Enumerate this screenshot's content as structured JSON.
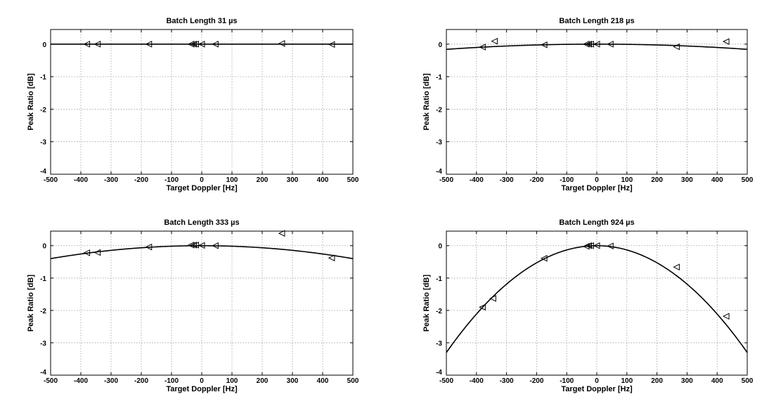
{
  "chart_data": [
    {
      "type": "line",
      "title": "Batch Length 31 µs",
      "xlabel": "Target Doppler [Hz]",
      "ylabel": "Peak Ratio [dB]",
      "xlim": [
        -500,
        500
      ],
      "ylim": [
        -4,
        0.45
      ],
      "xticks": [
        -500,
        -400,
        -300,
        -200,
        -100,
        0,
        100,
        200,
        300,
        400,
        500
      ],
      "yticks": [
        0,
        -1,
        -2,
        -3,
        -4
      ],
      "grid": true,
      "curve": {
        "style": "solid",
        "curvature_db_per_hz2": 5e-10
      },
      "markers": {
        "shape": "left-triangle",
        "x": [
          -380,
          -345,
          -175,
          -35,
          -27,
          -20,
          0,
          45,
          265,
          430
        ],
        "y": [
          0.0,
          0.0,
          0.0,
          0.0,
          0.0,
          0.0,
          0.0,
          0.0,
          0.02,
          -0.01
        ]
      }
    },
    {
      "type": "line",
      "title": "Batch Length 218 µs",
      "xlabel": "Target Doppler [Hz]",
      "ylabel": "Peak Ratio [dB]",
      "xlim": [
        -500,
        500
      ],
      "ylim": [
        -4,
        0.45
      ],
      "xticks": [
        -500,
        -400,
        -300,
        -200,
        -100,
        0,
        100,
        200,
        300,
        400,
        500
      ],
      "yticks": [
        0,
        -1,
        -2,
        -3,
        -4
      ],
      "grid": true,
      "curve": {
        "style": "solid",
        "curvature_db_per_hz2": 6.4e-07
      },
      "markers": {
        "shape": "left-triangle",
        "x": [
          -380,
          -340,
          -175,
          -35,
          -27,
          -20,
          0,
          45,
          265,
          430
        ],
        "y": [
          -0.09,
          0.09,
          -0.02,
          0.0,
          0.0,
          0.0,
          0.0,
          0.0,
          -0.08,
          0.08
        ]
      }
    },
    {
      "type": "line",
      "title": "Batch Length 333 µs",
      "xlabel": "Target Doppler [Hz]",
      "ylabel": "Peak Ratio [dB]",
      "xlim": [
        -500,
        500
      ],
      "ylim": [
        -4,
        0.45
      ],
      "xticks": [
        -500,
        -400,
        -300,
        -200,
        -100,
        0,
        100,
        200,
        300,
        400,
        500
      ],
      "yticks": [
        0,
        -1,
        -2,
        -3,
        -4
      ],
      "grid": true,
      "curve": {
        "style": "solid",
        "curvature_db_per_hz2": 1.6e-06
      },
      "markers": {
        "shape": "left-triangle",
        "x": [
          -380,
          -345,
          -175,
          -35,
          -27,
          -20,
          0,
          45,
          265,
          430
        ],
        "y": [
          -0.22,
          -0.21,
          -0.04,
          0.02,
          0.02,
          0.02,
          0.01,
          0.0,
          0.38,
          -0.38
        ]
      }
    },
    {
      "type": "line",
      "title": "Batch Length 924 µs",
      "xlabel": "Target Doppler [Hz]",
      "ylabel": "Peak Ratio [dB]",
      "xlim": [
        -500,
        500
      ],
      "ylim": [
        -4,
        0.45
      ],
      "xticks": [
        -500,
        -400,
        -300,
        -200,
        -100,
        0,
        100,
        200,
        300,
        400,
        500
      ],
      "yticks": [
        0,
        -1,
        -2,
        -3,
        -4
      ],
      "grid": true,
      "curve": {
        "style": "solid",
        "curvature_db_per_hz2": 1.32e-05
      },
      "markers": {
        "shape": "left-triangle",
        "x": [
          -380,
          -345,
          -175,
          -35,
          -27,
          -20,
          0,
          45,
          265,
          430
        ],
        "y": [
          -1.9,
          -1.63,
          -0.39,
          -0.02,
          0.0,
          0.0,
          0.0,
          -0.01,
          -0.66,
          -2.18
        ]
      }
    }
  ]
}
